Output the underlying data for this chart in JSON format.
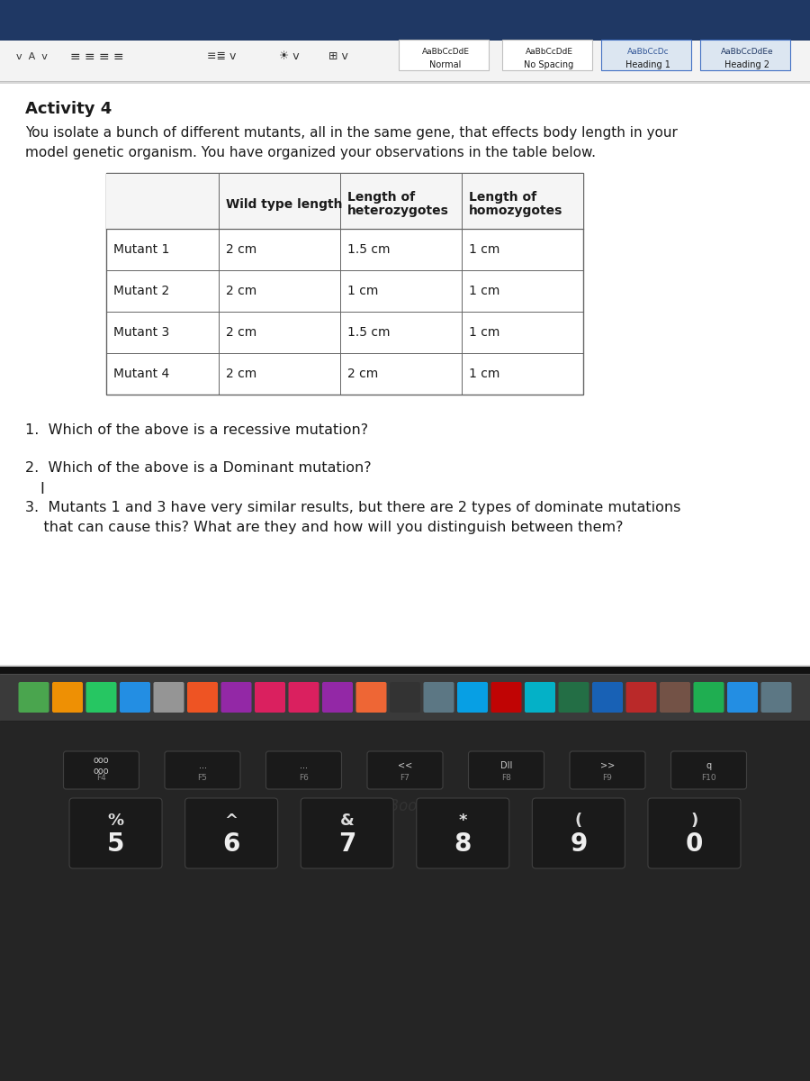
{
  "bg_top_bar": "#1f3864",
  "bg_ribbon": "#f3f3f3",
  "bg_document": "#e0e0e0",
  "bg_white": "#ffffff",
  "bg_dock": "#323232",
  "bg_keyboard": "#1c1c1c",
  "bg_laptop_body": "#2a2a2a",
  "title": "Activity 4",
  "intro_line1": "You isolate a bunch of different mutants, all in the same gene, that effects body length in your",
  "intro_line2": "model genetic organism. You have organized your observations in the table below.",
  "col_headers": [
    "",
    "Wild type length",
    "Length of\nheterozygotes",
    "Length of\nhomozygotes"
  ],
  "rows": [
    [
      "Mutant 1",
      "2 cm",
      "1.5 cm",
      "1 cm"
    ],
    [
      "Mutant 2",
      "2 cm",
      "1 cm",
      "1 cm"
    ],
    [
      "Mutant 3",
      "2 cm",
      "1.5 cm",
      "1 cm"
    ],
    [
      "Mutant 4",
      "2 cm",
      "2 cm",
      "1 cm"
    ]
  ],
  "q1": "1.  Which of the above is a recessive mutation?",
  "q2": "2.  Which of the above is a Dominant mutation?",
  "q3_line1": "3.  Mutants 1 and 3 have very similar results, but there are 2 types of dominate mutations",
  "q3_line2": "    that can cause this? What are they and how will you distinguish between them?",
  "ribbon_styles": [
    "Normal",
    "No Spacing",
    "Heading 1",
    "Heading 2"
  ],
  "preview_texts": [
    "AaBbCcDdE",
    "AaBbCcDdE",
    "AaBbCcDc",
    "AaBbCcDdEe"
  ],
  "preview_colors": [
    "#1a1a1a",
    "#1a1a1a",
    "#2f5496",
    "#1f3864"
  ],
  "font_color_dark": "#1a1a1a",
  "table_border_color": "#666666",
  "dock_icons_colors": [
    "#4CAF50",
    "#FF9800",
    "#25D366",
    "#2196F3",
    "#9E9E9E",
    "#FF5722",
    "#9C27B0",
    "#E91E63",
    "#E91E63",
    "#9C27B0",
    "#FF6B35",
    "#333333",
    "#607D8B",
    "#03A9F4",
    "#CC0000",
    "#00BCD4",
    "#217346",
    "#1565C0",
    "#C62828",
    "#795548",
    "#1DB954",
    "#2196F3",
    "#607D8B"
  ],
  "fkeys": [
    [
      "F4",
      "ooo\nooo"
    ],
    [
      "F5",
      "..."
    ],
    [
      "F6",
      "..."
    ],
    [
      "F7",
      "<<"
    ],
    [
      "F8",
      "DII"
    ],
    [
      "F9",
      ">>"
    ],
    [
      "F10",
      "q"
    ]
  ],
  "numkeys": [
    [
      "5",
      "%"
    ],
    [
      "6",
      "^"
    ],
    [
      "7",
      "&"
    ],
    [
      "8",
      "*"
    ],
    [
      "9",
      "("
    ],
    [
      "0",
      ")"
    ]
  ]
}
